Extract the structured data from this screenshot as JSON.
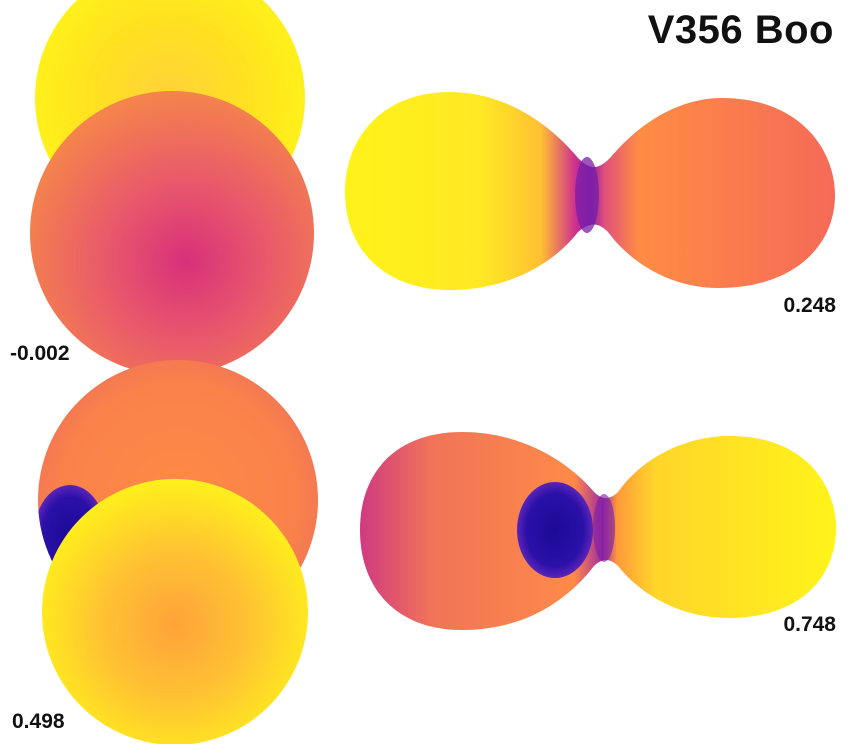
{
  "title": "V356 Boo",
  "colors": {
    "hot": "#ffff1a",
    "warm": "#ffcc33",
    "mid": "#ff8844",
    "cool": "#e04e80",
    "spot": "#2a0ea0",
    "background": "#ffffff"
  },
  "panels": [
    {
      "phase_label": "-0.002",
      "view": "primary-eclipse",
      "front_star": "secondary"
    },
    {
      "phase_label": "0.248",
      "view": "quadrature",
      "left_star": "secondary",
      "right_star": "primary"
    },
    {
      "phase_label": "0.498",
      "view": "secondary-eclipse",
      "front_star": "primary",
      "spot_visible": true
    },
    {
      "phase_label": "0.748",
      "view": "quadrature",
      "left_star": "primary",
      "right_star": "secondary",
      "spot_visible": true
    }
  ]
}
